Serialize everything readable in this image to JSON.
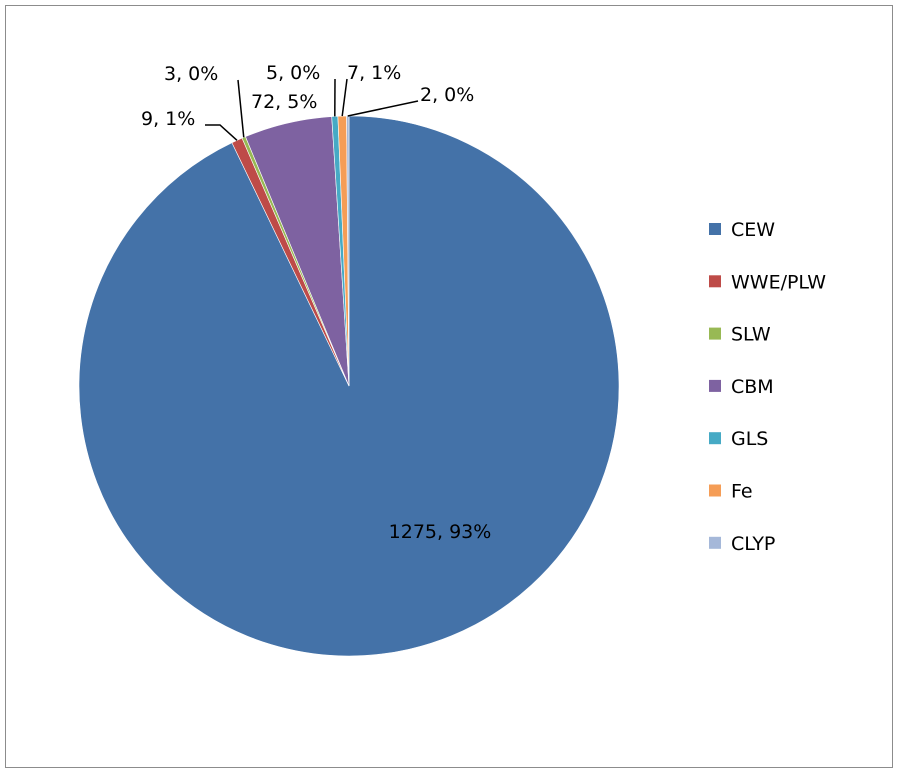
{
  "chart_data": {
    "type": "pie",
    "title": "",
    "start_angle_deg": 0,
    "direction": "clockwise",
    "legend_position": "right",
    "slices": [
      {
        "name": "CEW",
        "value": 1275,
        "percent_label": "93%",
        "label": "1275, 93%",
        "color": "#4472a8"
      },
      {
        "name": "WWE/PLW",
        "value": 9,
        "percent_label": "1%",
        "label": "9, 1%",
        "color": "#be4b48"
      },
      {
        "name": "SLW",
        "value": 3,
        "percent_label": "0%",
        "label": "3, 0%",
        "color": "#98b954"
      },
      {
        "name": "CBM",
        "value": 72,
        "percent_label": "5%",
        "label": "72, 5%",
        "color": "#7e62a1"
      },
      {
        "name": "GLS",
        "value": 5,
        "percent_label": "0%",
        "label": "5, 0%",
        "color": "#46aac5"
      },
      {
        "name": "Fe",
        "value": 7,
        "percent_label": "1%",
        "label": "7, 1%",
        "color": "#f59d56"
      },
      {
        "name": "CLYP",
        "value": 2,
        "percent_label": "0%",
        "label": "2, 0%",
        "color": "#a5b8d9"
      }
    ]
  }
}
